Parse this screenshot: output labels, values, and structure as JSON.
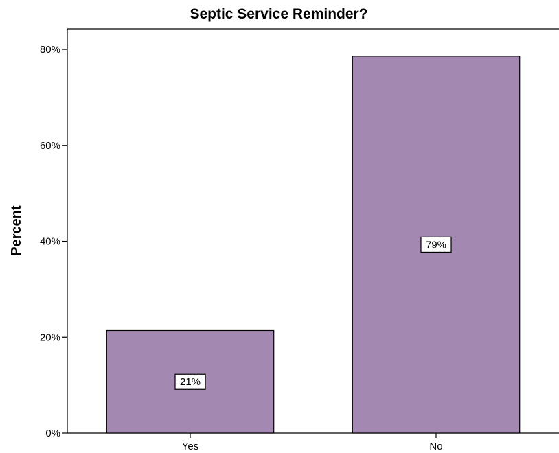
{
  "chart_data": {
    "type": "bar",
    "title": "Septic Service Reminder?",
    "xlabel": "",
    "ylabel": "Percent",
    "categories": [
      "Yes",
      "No"
    ],
    "values": [
      21.4,
      78.6
    ],
    "data_labels": [
      "21%",
      "79%"
    ],
    "ylim": [
      0,
      84.3
    ],
    "yticks": [
      0,
      20,
      40,
      60,
      80
    ],
    "ytick_labels": [
      "0%",
      "20%",
      "40%",
      "60%",
      "80%"
    ],
    "bar_color": "#a389b1",
    "grid": false,
    "legend": "none"
  }
}
